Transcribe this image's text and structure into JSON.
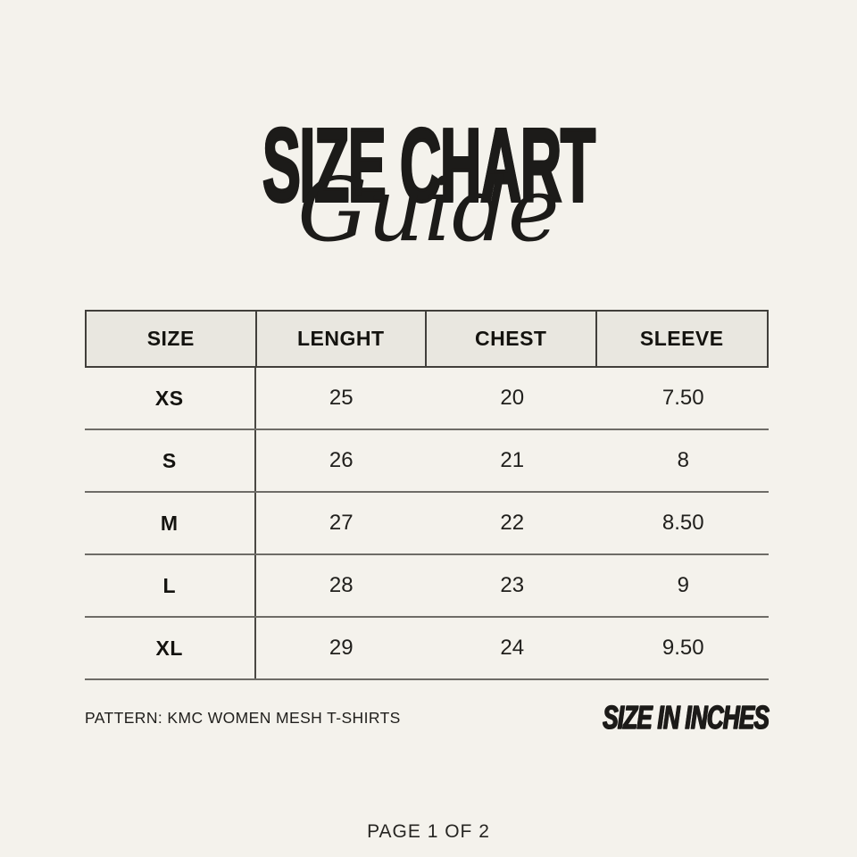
{
  "title": {
    "main": "SIZE CHART",
    "script": "Guide"
  },
  "table": {
    "headers": [
      "SIZE",
      "LENGHT",
      "CHEST",
      "SLEEVE"
    ],
    "rows": [
      [
        "XS",
        "25",
        "20",
        "7.50"
      ],
      [
        "S",
        "26",
        "21",
        "8"
      ],
      [
        "M",
        "27",
        "22",
        "8.50"
      ],
      [
        "L",
        "28",
        "23",
        "9"
      ],
      [
        "XL",
        "29",
        "24",
        "9.50"
      ]
    ]
  },
  "meta": {
    "pattern": "PATTERN: KMC WOMEN MESH T-SHIRTS",
    "units": "SIZE IN INCHES"
  },
  "page": {
    "label": "PAGE 1 OF 2"
  },
  "colors": {
    "background": "#f4f2ec",
    "header_fill": "#e9e7e0",
    "header_border": "#413f3b",
    "row_line": "#6e6c67",
    "text": "#1c1b19"
  },
  "chart_data": {
    "type": "table",
    "title": "SIZE CHART Guide",
    "columns": [
      "SIZE",
      "LENGHT",
      "CHEST",
      "SLEEVE"
    ],
    "rows": [
      [
        "XS",
        25,
        20,
        7.5
      ],
      [
        "S",
        26,
        21,
        8
      ],
      [
        "M",
        27,
        22,
        8.5
      ],
      [
        "L",
        28,
        23,
        9
      ],
      [
        "XL",
        29,
        24,
        9.5
      ]
    ],
    "units": "inches",
    "notes": [
      "PATTERN: KMC WOMEN MESH T-SHIRTS",
      "SIZE IN INCHES",
      "PAGE 1 OF 2"
    ]
  }
}
